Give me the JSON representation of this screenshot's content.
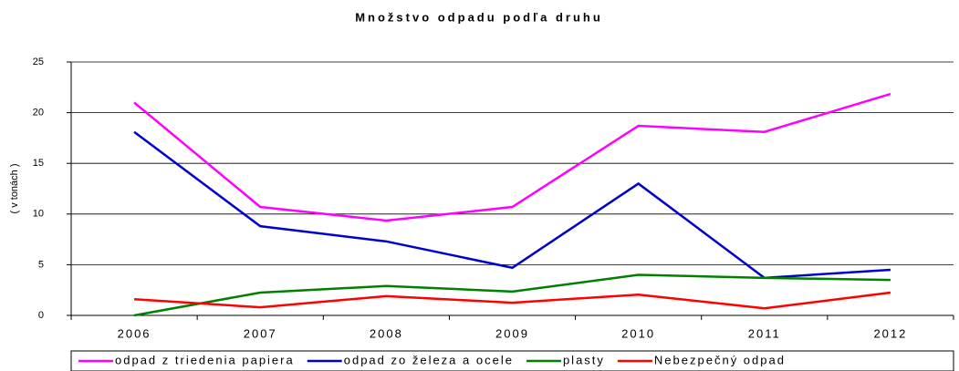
{
  "chart_data": {
    "type": "line",
    "title": "Množstvo odpadu podľa druhu",
    "y_label": "( v tonách )",
    "categories": [
      "2006",
      "2007",
      "2008",
      "2009",
      "2010",
      "2011",
      "2012"
    ],
    "series": [
      {
        "name": "odpad z triedenia papiera",
        "color": "#ff00ff",
        "values": [
          21,
          10.7,
          9.35,
          10.7,
          18.7,
          18.1,
          21.85
        ]
      },
      {
        "name": "odpad zo železa a ocele",
        "color": "#0000cc",
        "values": [
          18.1,
          8.8,
          7.3,
          4.7,
          13.0,
          3.7,
          4.5
        ]
      },
      {
        "name": "plasty",
        "color": "#008000",
        "values": [
          0,
          2.25,
          2.9,
          2.35,
          4.0,
          3.7,
          3.5
        ]
      },
      {
        "name": "Nebezpečný odpad",
        "color": "#ff0000",
        "values": [
          1.6,
          0.8,
          1.9,
          1.25,
          2.05,
          0.7,
          2.25
        ]
      }
    ],
    "ylim": [
      0,
      25
    ],
    "yticks": [
      0,
      5,
      10,
      15,
      20,
      25
    ],
    "grid": true,
    "legend": "bottom"
  }
}
